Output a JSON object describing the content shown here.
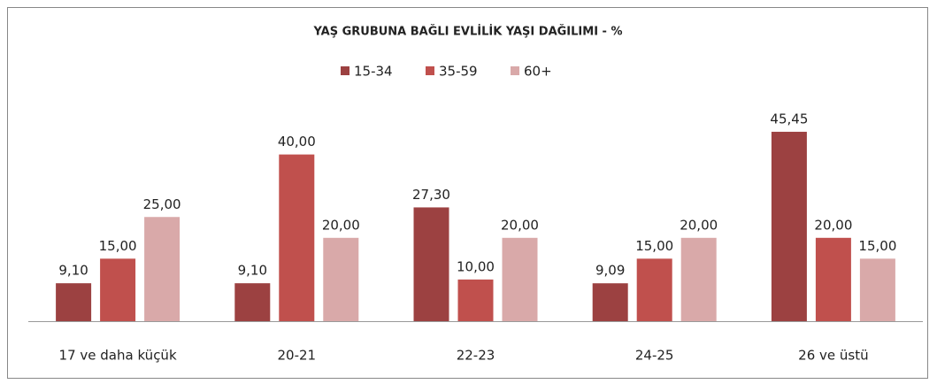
{
  "chart_data": {
    "type": "bar",
    "title": "YAŞ GRUBUNA BAĞLI EVLİLİK YAŞI DAĞILIMI - %",
    "categories": [
      "17 ve daha küçük",
      "20-21",
      "22-23",
      "24-25",
      "26 ve üstü"
    ],
    "series": [
      {
        "name": "15-34",
        "color": "#9c4141",
        "values": [
          9.1,
          9.1,
          27.3,
          9.09,
          45.45
        ],
        "value_labels": [
          "9,10",
          "9,10",
          "27,30",
          "9,09",
          "45,45"
        ]
      },
      {
        "name": "35-59",
        "color": "#c0504d",
        "values": [
          15,
          40,
          10,
          15,
          20
        ],
        "value_labels": [
          "15,00",
          "40,00",
          "10,00",
          "15,00",
          "20,00"
        ]
      },
      {
        "name": "60+",
        "color": "#d9a9a9",
        "values": [
          25,
          20,
          20,
          20,
          15
        ],
        "value_labels": [
          "25,00",
          "20,00",
          "20,00",
          "20,00",
          "15,00"
        ]
      }
    ],
    "ylim": [
      0,
      50
    ],
    "legend": "top"
  }
}
